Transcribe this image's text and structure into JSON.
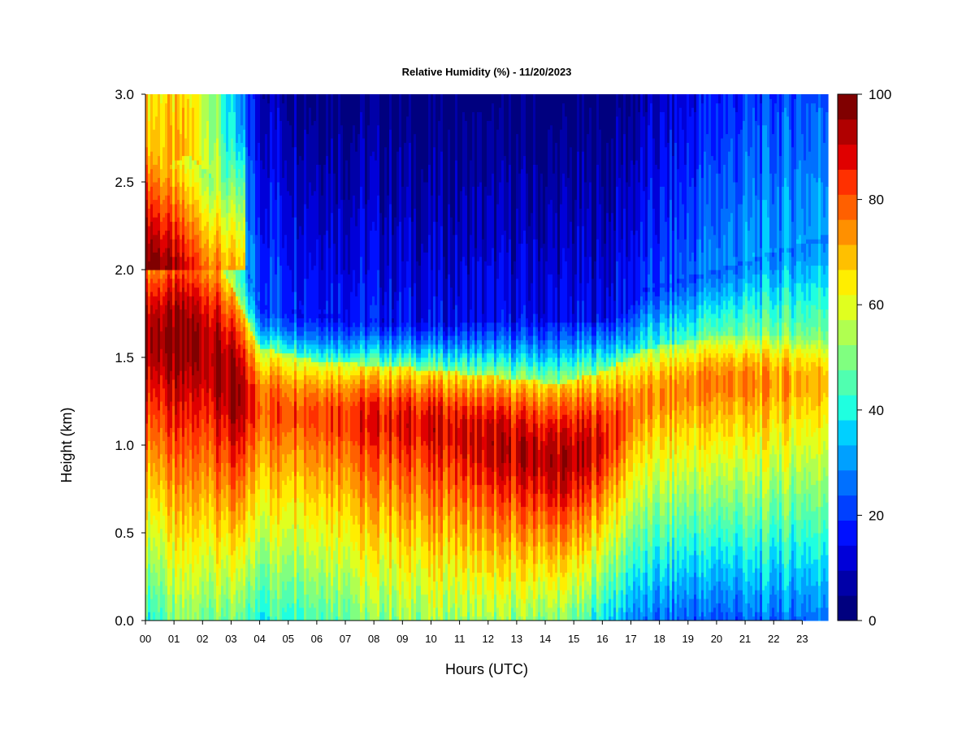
{
  "chart_data": {
    "type": "heatmap",
    "title": "Relative Humidity (%) - 11/20/2023",
    "xlabel": "Hours (UTC)",
    "ylabel": "Height (km)",
    "x_ticks": [
      "00",
      "01",
      "02",
      "03",
      "04",
      "05",
      "06",
      "07",
      "08",
      "09",
      "10",
      "11",
      "12",
      "13",
      "14",
      "15",
      "16",
      "17",
      "18",
      "19",
      "20",
      "21",
      "22",
      "23"
    ],
    "x_range": [
      0,
      23.9
    ],
    "y_ticks": [
      "0.0",
      "0.5",
      "1.0",
      "1.5",
      "2.0",
      "2.5",
      "3.0"
    ],
    "y_range": [
      0,
      3.0
    ],
    "colorbar": {
      "range": [
        0,
        100
      ],
      "step": 5,
      "tick_labels": [
        "0",
        "20",
        "40",
        "60",
        "80",
        "100"
      ],
      "colors": [
        "#00007f",
        "#0000a8",
        "#0000d9",
        "#0010ff",
        "#0040ff",
        "#0070ff",
        "#00a0ff",
        "#00d0ff",
        "#1fffe0",
        "#50ffb0",
        "#80ff80",
        "#b0ff50",
        "#e0ff1f",
        "#ffee00",
        "#ffc000",
        "#ff9000",
        "#ff6000",
        "#ff3000",
        "#e00000",
        "#b00000",
        "#800000"
      ]
    },
    "structure_profiles": [
      {
        "hour": 0,
        "surface": 45,
        "peak": 100,
        "center_km": 1.6,
        "width_km": 0.8,
        "top_km": 2.55,
        "top_rh": 75
      },
      {
        "hour": 1.5,
        "surface": 55,
        "peak": 100,
        "center_km": 1.6,
        "width_km": 0.9,
        "top_km": 2.65,
        "top_rh": 72
      },
      {
        "hour": 2.3,
        "surface": 55,
        "peak": 100,
        "center_km": 1.5,
        "width_km": 1.0,
        "top_km": 2.55,
        "top_rh": 62
      },
      {
        "hour": 3.2,
        "surface": 50,
        "peak": 98,
        "center_km": 1.3,
        "width_km": 0.9,
        "top_km": 2.2,
        "top_rh": 40
      },
      {
        "hour": 4.0,
        "surface": 45,
        "peak": 85,
        "center_km": 1.2,
        "width_km": 0.6,
        "top_km": 1.8,
        "top_rh": 25
      },
      {
        "hour": 6.0,
        "surface": 52,
        "peak": 88,
        "center_km": 1.15,
        "width_km": 0.55,
        "top_km": 1.75,
        "top_rh": 20
      },
      {
        "hour": 10.0,
        "surface": 58,
        "peak": 93,
        "center_km": 1.1,
        "width_km": 0.55,
        "top_km": 1.7,
        "top_rh": 15
      },
      {
        "hour": 14.5,
        "surface": 55,
        "peak": 97,
        "center_km": 0.9,
        "width_km": 0.75,
        "top_km": 1.7,
        "top_rh": 15
      },
      {
        "hour": 16.0,
        "surface": 42,
        "peak": 92,
        "center_km": 1.0,
        "width_km": 0.7,
        "top_km": 1.7,
        "top_rh": 15
      },
      {
        "hour": 17.5,
        "surface": 28,
        "peak": 76,
        "center_km": 1.25,
        "width_km": 0.5,
        "top_km": 1.9,
        "top_rh": 20
      },
      {
        "hour": 20.0,
        "surface": 25,
        "peak": 80,
        "center_km": 1.35,
        "width_km": 0.45,
        "top_km": 2.0,
        "top_rh": 30
      },
      {
        "hour": 23.9,
        "surface": 30,
        "peak": 74,
        "center_km": 1.35,
        "width_km": 0.45,
        "top_km": 2.2,
        "top_rh": 35
      }
    ]
  }
}
